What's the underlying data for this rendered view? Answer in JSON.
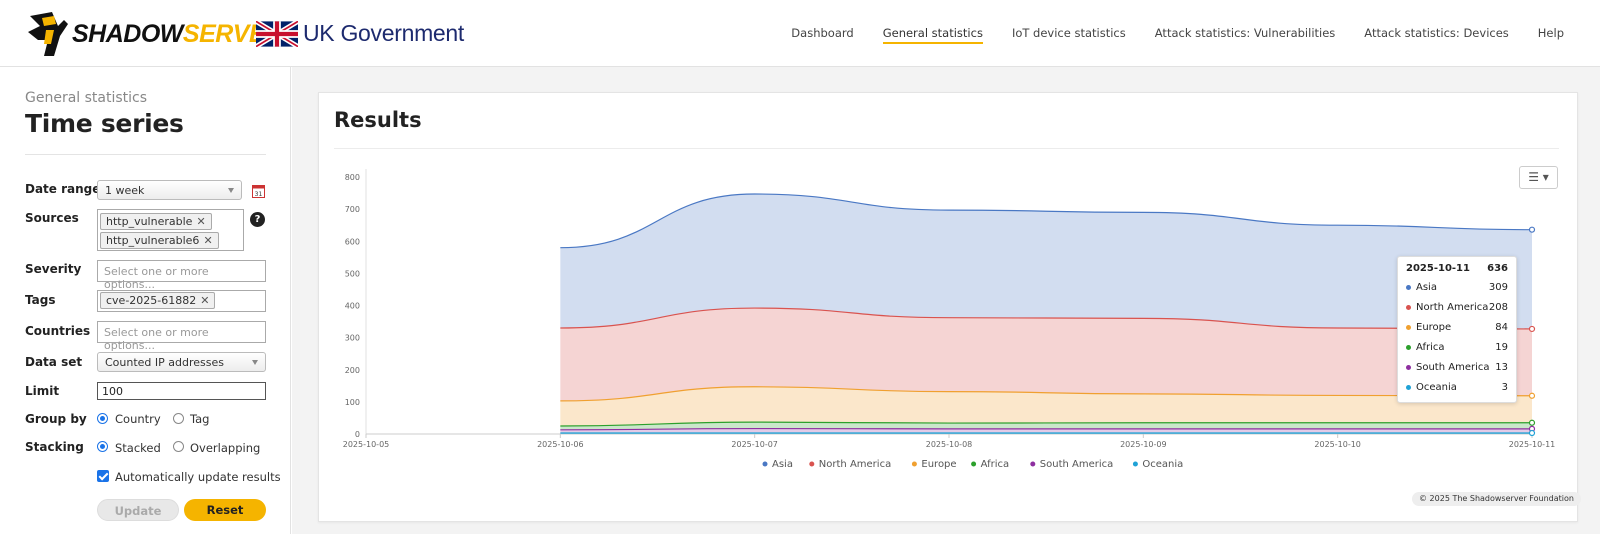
{
  "brand": {
    "shadow": "SHADOW",
    "server": "SERVER",
    "gov_label": "UK Government"
  },
  "nav": [
    {
      "label": "Dashboard",
      "active": false
    },
    {
      "label": "General statistics",
      "active": true
    },
    {
      "label": "IoT device statistics",
      "active": false
    },
    {
      "label": "Attack statistics: Vulnerabilities",
      "active": false
    },
    {
      "label": "Attack statistics: Devices",
      "active": false
    },
    {
      "label": "Help",
      "active": false
    }
  ],
  "sidebar": {
    "subtitle": "General statistics",
    "title": "Time series",
    "date_range": {
      "label": "Date range",
      "value": "1 week"
    },
    "sources": {
      "label": "Sources",
      "tags": [
        "http_vulnerable",
        "http_vulnerable6"
      ]
    },
    "severity": {
      "label": "Severity",
      "placeholder": "Select one or more options..."
    },
    "tags": {
      "label": "Tags",
      "tags": [
        "cve-2025-61882"
      ]
    },
    "countries": {
      "label": "Countries",
      "placeholder": "Select one or more options..."
    },
    "data_set": {
      "label": "Data set",
      "value": "Counted IP addresses"
    },
    "limit": {
      "label": "Limit",
      "value": "100"
    },
    "group_by": {
      "label": "Group by",
      "options": [
        "Country",
        "Tag"
      ],
      "selected": "Country"
    },
    "stacking": {
      "label": "Stacking",
      "options": [
        "Stacked",
        "Overlapping"
      ],
      "selected": "Stacked"
    },
    "auto_update": {
      "label": "Automatically update results",
      "checked": true
    },
    "update_label": "Update",
    "reset_label": "Reset"
  },
  "main": {
    "results_title": "Results",
    "menu_icon": "hamburger-menu-icon",
    "copyright": "© 2025 The Shadowserver Foundation"
  },
  "tooltip": {
    "date": "2025-10-11",
    "total": "636",
    "rows": [
      {
        "name": "Asia",
        "value": "309",
        "color": "#4a78c4"
      },
      {
        "name": "North America",
        "value": "208",
        "color": "#d9534f"
      },
      {
        "name": "Europe",
        "value": "84",
        "color": "#f0a030"
      },
      {
        "name": "Africa",
        "value": "19",
        "color": "#2ca02c"
      },
      {
        "name": "South America",
        "value": "13",
        "color": "#8e2fa0"
      },
      {
        "name": "Oceania",
        "value": "3",
        "color": "#1fa2d6"
      }
    ]
  },
  "chart_data": {
    "type": "area",
    "stacked": true,
    "x_tick_labels": [
      "2025-10-05",
      "2025-10-06",
      "2025-10-07",
      "2025-10-08",
      "2025-10-09",
      "2025-10-10",
      "2025-10-11"
    ],
    "x": [
      "2025-10-06",
      "2025-10-07",
      "2025-10-08",
      "2025-10-09",
      "2025-10-10",
      "2025-10-11"
    ],
    "ylim": [
      0,
      800
    ],
    "y_ticks": [
      0,
      100,
      200,
      300,
      400,
      500,
      600,
      700,
      800
    ],
    "legend_position": "bottom",
    "series": [
      {
        "name": "Oceania",
        "color": "#1fa2d6",
        "values": [
          3,
          3,
          3,
          3,
          3,
          3
        ]
      },
      {
        "name": "South America",
        "color": "#8e2fa0",
        "values": [
          10,
          14,
          13,
          13,
          13,
          13
        ]
      },
      {
        "name": "Africa",
        "color": "#2ca02c",
        "values": [
          12,
          20,
          18,
          19,
          19,
          19
        ]
      },
      {
        "name": "Europe",
        "color": "#f0a030",
        "values": [
          78,
          110,
          98,
          90,
          85,
          84
        ]
      },
      {
        "name": "North America",
        "color": "#d9534f",
        "values": [
          227,
          245,
          230,
          235,
          210,
          208
        ]
      },
      {
        "name": "Asia",
        "color": "#4a78c4",
        "values": [
          250,
          355,
          335,
          330,
          320,
          309
        ]
      }
    ],
    "legend": [
      "Asia",
      "North America",
      "Europe",
      "Africa",
      "South America",
      "Oceania"
    ]
  }
}
